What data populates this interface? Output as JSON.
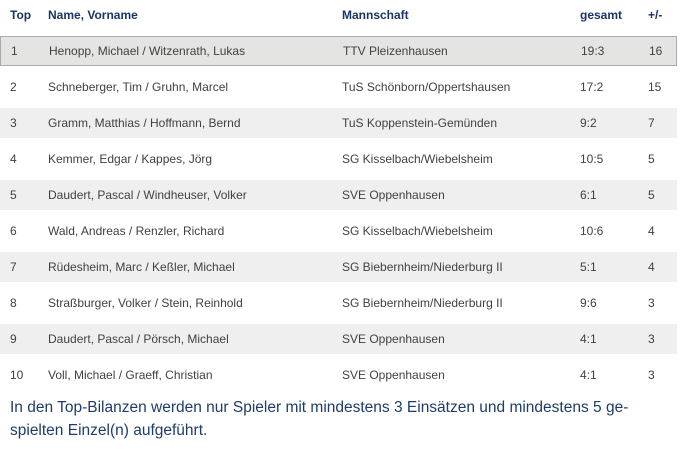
{
  "table": {
    "columns": [
      {
        "key": "top",
        "label": "Top"
      },
      {
        "key": "name",
        "label": "Name, Vorname"
      },
      {
        "key": "team",
        "label": "Mannschaft"
      },
      {
        "key": "total",
        "label": "gesamt"
      },
      {
        "key": "plusminus",
        "label": "+/-"
      }
    ],
    "rows": [
      {
        "top": "1",
        "name": "Henopp, Michael / Witzenrath, Lukas",
        "team": "TTV Pleizenhausen",
        "total": "19:3",
        "plusminus": "16",
        "highlighted": true
      },
      {
        "top": "2",
        "name": "Schneberger, Tim / Gruhn, Marcel",
        "team": "TuS Schönborn/Oppertshausen",
        "total": "17:2",
        "plusminus": "15",
        "highlighted": false
      },
      {
        "top": "3",
        "name": "Gramm, Matthias / Hoffmann, Bernd",
        "team": "TuS Koppenstein-Gemünden",
        "total": "9:2",
        "plusminus": "7",
        "highlighted": false
      },
      {
        "top": "4",
        "name": "Kemmer, Edgar / Kappes, Jörg",
        "team": "SG Kisselbach/Wiebelsheim",
        "total": "10:5",
        "plusminus": "5",
        "highlighted": false
      },
      {
        "top": "5",
        "name": "Daudert, Pascal / Windheuser, Volker",
        "team": "SVE Oppenhausen",
        "total": "6:1",
        "plusminus": "5",
        "highlighted": false
      },
      {
        "top": "6",
        "name": "Wald, Andreas / Renzler, Richard",
        "team": "SG Kisselbach/Wiebelsheim",
        "total": "10:6",
        "plusminus": "4",
        "highlighted": false
      },
      {
        "top": "7",
        "name": "Rüdesheim, Marc / Keßler, Michael",
        "team": "SG Biebernheim/Niederburg II",
        "total": "5:1",
        "plusminus": "4",
        "highlighted": false
      },
      {
        "top": "8",
        "name": "Straßburger, Volker / Stein, Reinhold",
        "team": "SG Biebernheim/Niederburg II",
        "total": "9:6",
        "plusminus": "3",
        "highlighted": false
      },
      {
        "top": "9",
        "name": "Daudert, Pascal / Pörsch, Michael",
        "team": "SVE Oppenhausen",
        "total": "4:1",
        "plusminus": "3",
        "highlighted": false
      },
      {
        "top": "10",
        "name": "Voll, Michael / Graeff, Christian",
        "team": "SVE Oppenhausen",
        "total": "4:1",
        "plusminus": "3",
        "highlighted": false
      }
    ]
  },
  "footer": {
    "lines": [
      "In den Top-Bilanzen werden nur Spieler mit mindestens 3 Einsätzen und mindestens 5 ge-",
      "spielten Einzel(n) aufgeführt."
    ]
  },
  "colors": {
    "header_text": "#1b3666",
    "body_text": "#414141",
    "highlight_bg": "#e4e4e3",
    "highlight_border": "#ababab",
    "stripe_bg": "#efefef",
    "footer_text": "#1e3c6b",
    "page_bg": "#ffffff"
  }
}
